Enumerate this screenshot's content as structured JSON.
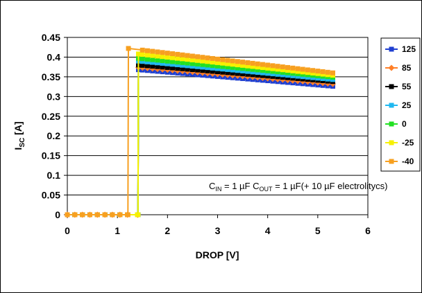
{
  "chart_data": {
    "type": "line",
    "xlabel": "DROP [V]",
    "ylabel": {
      "main": "I",
      "sub": "SC",
      "unit": " [A]"
    },
    "xlim": [
      0,
      6
    ],
    "ylim": [
      0,
      0.45
    ],
    "xticks": [
      "0",
      "1",
      "2",
      "3",
      "4",
      "5",
      "6"
    ],
    "yticks": [
      "0",
      "0.05",
      "0.1",
      "0.15",
      "0.2",
      "0.25",
      "0.3",
      "0.35",
      "0.4",
      "0.45"
    ],
    "grid": "horizontal",
    "legend_position": "right",
    "annotation": {
      "cin_label": "C",
      "cin_sub": "IN",
      "cin_value": " = 1 µF C",
      "cout_sub": "OUT",
      "cout_value": " = 1 µF(+ 10 µF electrolitycs)"
    },
    "series": [
      {
        "name": "125",
        "color": "#1f3fd0",
        "marker": "square",
        "x_on": 1.42,
        "y_on": 0.368,
        "y_end": 0.326
      },
      {
        "name": "85",
        "color": "#ff7f27",
        "marker": "diamond",
        "x_on": 1.42,
        "y_on": 0.374,
        "y_end": 0.332
      },
      {
        "name": "55",
        "color": "#000000",
        "marker": "square",
        "x_on": 1.42,
        "y_on": 0.38,
        "y_end": 0.338
      },
      {
        "name": "25",
        "color": "#1fb8f0",
        "marker": "square",
        "x_on": 1.42,
        "y_on": 0.39,
        "y_end": 0.343
      },
      {
        "name": "0",
        "color": "#22e022",
        "marker": "square",
        "x_on": 1.42,
        "y_on": 0.397,
        "y_end": 0.349
      },
      {
        "name": "-25",
        "color": "#f6f000",
        "marker": "square",
        "x_on": 1.42,
        "y_on": 0.408,
        "y_end": 0.354
      },
      {
        "name": "-40",
        "color": "#f7a020",
        "marker": "square",
        "x_on": 1.22,
        "y_on": 0.422,
        "y_end": 0.36
      }
    ],
    "x_points_off": [
      0,
      0.15,
      0.3,
      0.45,
      0.6,
      0.75,
      0.9,
      1.05,
      1.2,
      1.4
    ],
    "x_points_on_start": 1.5,
    "x_points_on_end": 5.3,
    "x_points_on_step": 0.1
  }
}
